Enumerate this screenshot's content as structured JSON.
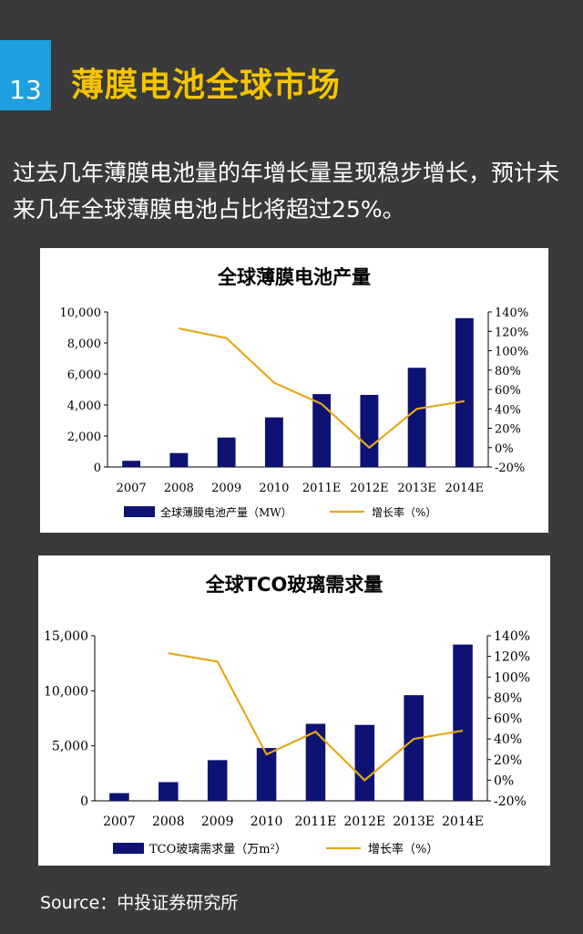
{
  "page": {
    "number": "13",
    "title": "薄膜电池全球市场",
    "intro": "过去几年薄膜电池量的年增长量呈现稳步增长，预计未来几年全球薄膜电池占比将超过25%。",
    "source": "Source：中投证券研究所"
  },
  "colors": {
    "bar": "#0d1273",
    "line": "#e5a81b",
    "accent": "#f5c400",
    "badge": "#1ea0e0"
  },
  "chart_data": [
    {
      "type": "bar",
      "title": "全球薄膜电池产量",
      "categories": [
        "2007",
        "2008",
        "2009",
        "2010",
        "2011E",
        "2012E",
        "2013E",
        "2014E"
      ],
      "series": [
        {
          "name": "全球薄膜电池产量（MW）",
          "type": "bar",
          "axis": "left",
          "values": [
            400,
            900,
            1900,
            3200,
            4700,
            4650,
            6400,
            9600
          ]
        },
        {
          "name": "增长率（%）",
          "type": "line",
          "axis": "right",
          "values": [
            null,
            123,
            113,
            67,
            45,
            0,
            40,
            48
          ]
        }
      ],
      "y_left": {
        "min": 0,
        "max": 10000,
        "ticks": [
          "0",
          "2,000",
          "4,000",
          "6,000",
          "8,000",
          "10,000"
        ]
      },
      "y_right": {
        "min": -20,
        "max": 140,
        "ticks": [
          "-20%",
          "0%",
          "20%",
          "40%",
          "60%",
          "80%",
          "100%",
          "120%",
          "140%"
        ]
      },
      "grid": false,
      "legend": "bottom"
    },
    {
      "type": "bar",
      "title": "全球TCO玻璃需求量",
      "categories": [
        "2007",
        "2008",
        "2009",
        "2010",
        "2011E",
        "2012E",
        "2013E",
        "2014E"
      ],
      "series": [
        {
          "name": "TCO玻璃需求量（万m²）",
          "type": "bar",
          "axis": "left",
          "values": [
            700,
            1700,
            3700,
            4800,
            7000,
            6900,
            9600,
            14200
          ]
        },
        {
          "name": "增长率（%）",
          "type": "line",
          "axis": "right",
          "values": [
            null,
            123,
            115,
            25,
            47,
            0,
            40,
            48
          ]
        }
      ],
      "y_left": {
        "min": 0,
        "max": 15000,
        "ticks": [
          "0",
          "5,000",
          "10,000",
          "15,000"
        ]
      },
      "y_right": {
        "min": -20,
        "max": 140,
        "ticks": [
          "-20%",
          "0%",
          "20%",
          "40%",
          "60%",
          "80%",
          "100%",
          "120%",
          "140%"
        ]
      },
      "grid": false,
      "legend": "bottom"
    }
  ]
}
